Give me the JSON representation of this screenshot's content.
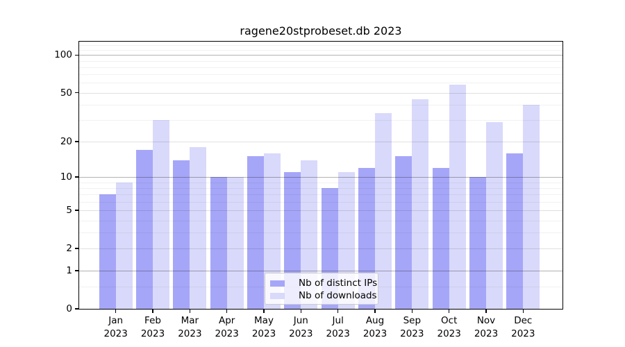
{
  "chart_data": {
    "type": "bar",
    "title": "ragene20stprobeset.db 2023",
    "scale": "log10(value+1)",
    "grid": true,
    "legend_position": "lower center",
    "background_color": "#ffffff",
    "categories": [
      "Jan",
      "Feb",
      "Mar",
      "Apr",
      "May",
      "Jun",
      "Jul",
      "Aug",
      "Sep",
      "Oct",
      "Nov",
      "Dec"
    ],
    "x_tick_year": "2023",
    "series": [
      {
        "name": "Nb of distinct IPs",
        "color": "#a6a6f8",
        "values": [
          7,
          17,
          14,
          10,
          15,
          11,
          8,
          12,
          15,
          12,
          10,
          16
        ]
      },
      {
        "name": "Nb of downloads",
        "color": "#d9d9fb",
        "values": [
          9,
          30,
          18,
          10,
          16,
          14,
          11,
          34,
          44,
          58,
          29,
          40
        ]
      }
    ],
    "y_ticks": [
      0,
      1,
      2,
      5,
      10,
      20,
      50,
      100
    ],
    "y_minor_ticks": [
      0.5,
      3,
      4,
      6,
      7,
      8,
      9,
      30,
      40,
      60,
      70,
      80,
      90,
      110,
      120
    ],
    "y_emphasized_gridlines": [
      1,
      10,
      100
    ],
    "ylim": [
      0,
      128
    ]
  }
}
